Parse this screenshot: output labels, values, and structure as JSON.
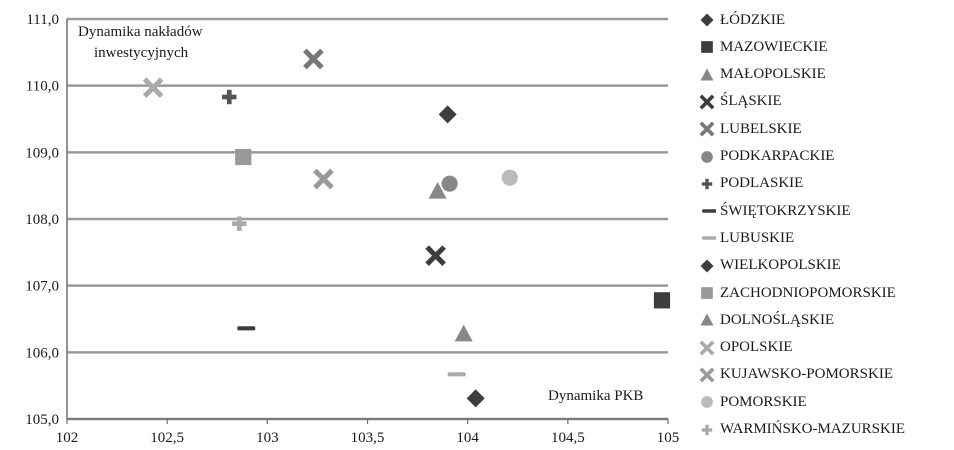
{
  "chart_data": {
    "type": "scatter",
    "annotations": {
      "y_title": [
        "Dynamika nakładów",
        "inwestycyjnych"
      ],
      "x_title": "Dynamika PKB"
    },
    "xlim": [
      102,
      105
    ],
    "ylim": [
      105.0,
      111.0
    ],
    "x_ticks": [
      "102",
      "102,5",
      "103",
      "103,5",
      "104",
      "104,5",
      "105"
    ],
    "y_ticks": [
      "105,0",
      "106,0",
      "107,0",
      "108,0",
      "109,0",
      "110,0",
      "111,0"
    ],
    "grid": "horizontal",
    "legend_position": "right",
    "series": [
      {
        "name": "ŁÓDZKIE",
        "marker": "diamond",
        "color": "#3d3d3d",
        "x": 103.9,
        "y": 109.57
      },
      {
        "name": "MAZOWIECKIE",
        "marker": "square",
        "color": "#3d3d3d",
        "x": 104.97,
        "y": 106.78
      },
      {
        "name": "MAŁOPOLSKIE",
        "marker": "triangle",
        "color": "#888888",
        "x": 103.85,
        "y": 108.42
      },
      {
        "name": "ŚLĄSKIE",
        "marker": "x",
        "color": "#3d3d3d",
        "x": 103.84,
        "y": 107.45
      },
      {
        "name": "LUBELSKIE",
        "marker": "x",
        "color": "#777777",
        "x": 103.23,
        "y": 110.4
      },
      {
        "name": "PODKARPACKIE",
        "marker": "circle",
        "color": "#888888",
        "x": 103.91,
        "y": 108.53
      },
      {
        "name": "PODLASKIE",
        "marker": "plus",
        "color": "#555555",
        "x": 102.81,
        "y": 109.83
      },
      {
        "name": "ŚWIĘTOKRZYSKIE",
        "marker": "dash",
        "color": "#3d3d3d",
        "x": 102.88,
        "y": 106.36
      },
      {
        "name": "LUBUSKIE",
        "marker": "dash",
        "color": "#aaaaaa",
        "x": 103.93,
        "y": 105.67
      },
      {
        "name": "WIELKOPOLSKIE",
        "marker": "diamond",
        "color": "#3d3d3d",
        "x": 104.04,
        "y": 105.31
      },
      {
        "name": "ZACHODNIOPOMORSKIE",
        "marker": "square",
        "color": "#999999",
        "x": 102.88,
        "y": 108.93
      },
      {
        "name": "DOLNOŚLĄSKIE",
        "marker": "triangle",
        "color": "#888888",
        "x": 103.98,
        "y": 106.28
      },
      {
        "name": "OPOLSKIE",
        "marker": "x",
        "color": "#aaaaaa",
        "x": 102.43,
        "y": 109.97
      },
      {
        "name": "KUJAWSKO-POMORSKIE",
        "marker": "x",
        "color": "#999999",
        "x": 103.28,
        "y": 108.6
      },
      {
        "name": "POMORSKIE",
        "marker": "circle",
        "color": "#bbbbbb",
        "x": 104.21,
        "y": 108.62
      },
      {
        "name": "WARMIŃSKO-MAZURSKIE",
        "marker": "plus",
        "color": "#aaaaaa",
        "x": 102.86,
        "y": 107.93
      }
    ]
  }
}
